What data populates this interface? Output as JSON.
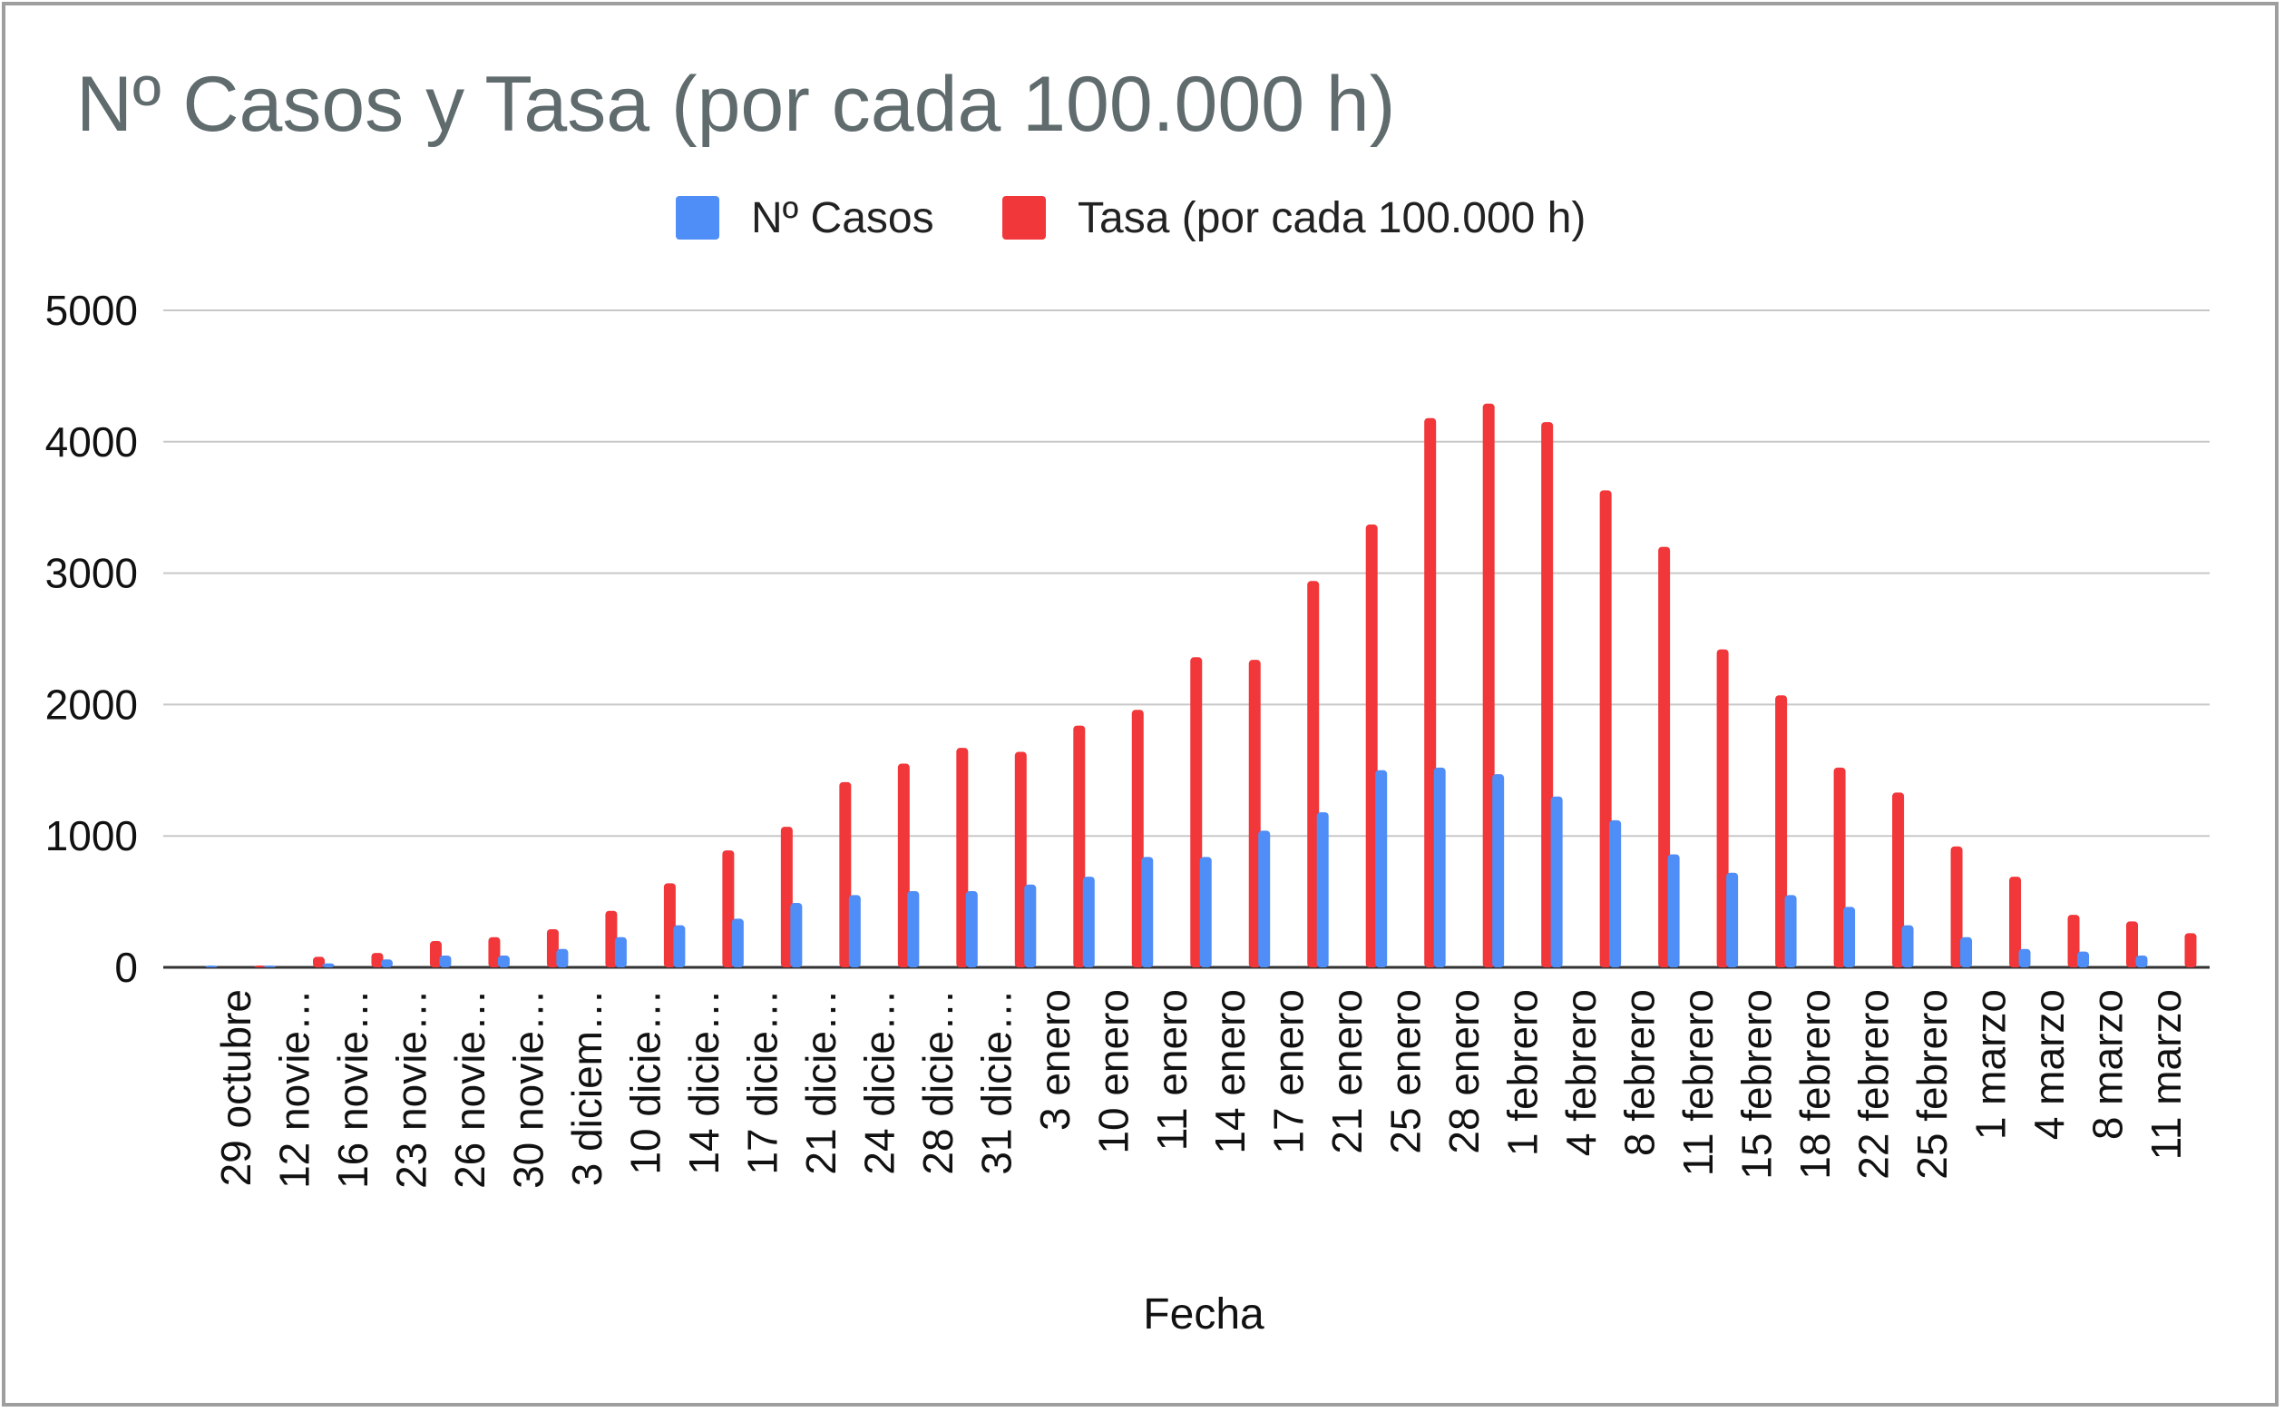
{
  "chart_data": {
    "type": "bar",
    "title": "Nº Casos y Tasa (por cada 100.000 h)",
    "xlabel": "Fecha",
    "ylabel": "",
    "ylim": [
      0,
      5000
    ],
    "yticks": [
      "0",
      "1000",
      "2000",
      "3000",
      "4000",
      "5000"
    ],
    "grid": true,
    "legend_position": "top",
    "categories": [
      "29 octubre",
      "12 novie…",
      "16 novie…",
      "23 novie…",
      "26 novie…",
      "30 novie…",
      "3 diciem…",
      "10 dicie…",
      "14 dicie…",
      "17 dicie…",
      "21 dicie…",
      "24 dicie…",
      "28 dicie…",
      "31 dicie…",
      "3 enero",
      "10 enero",
      "11 enero",
      "14 enero",
      "17 enero",
      "21 enero",
      "25 enero",
      "28 enero",
      "1 febrero",
      "4 febrero",
      "8 febrero",
      "11 febrero",
      "15 febrero",
      "18 febrero",
      "22 febrero",
      "25 febrero",
      "1 marzo",
      "4 marzo",
      "8 marzo",
      "11 marzo"
    ],
    "series": [
      {
        "name": "Nº Casos",
        "color": "#4f8ef7",
        "values": [
          5,
          10,
          30,
          60,
          90,
          90,
          140,
          230,
          320,
          370,
          490,
          550,
          580,
          580,
          630,
          690,
          840,
          840,
          1040,
          1180,
          1500,
          1520,
          1470,
          1300,
          1120,
          860,
          720,
          550,
          460,
          320,
          230,
          140,
          120,
          90
        ]
      },
      {
        "name": "Tasa (por cada 100.000 h)",
        "color": "#f2373a",
        "values": [
          5,
          80,
          110,
          200,
          230,
          290,
          430,
          640,
          890,
          1070,
          1410,
          1550,
          1670,
          1640,
          1840,
          1960,
          2360,
          2340,
          2940,
          3370,
          4180,
          4290,
          4150,
          3630,
          3200,
          2420,
          2070,
          1520,
          1330,
          920,
          690,
          400,
          350,
          260
        ]
      }
    ]
  }
}
